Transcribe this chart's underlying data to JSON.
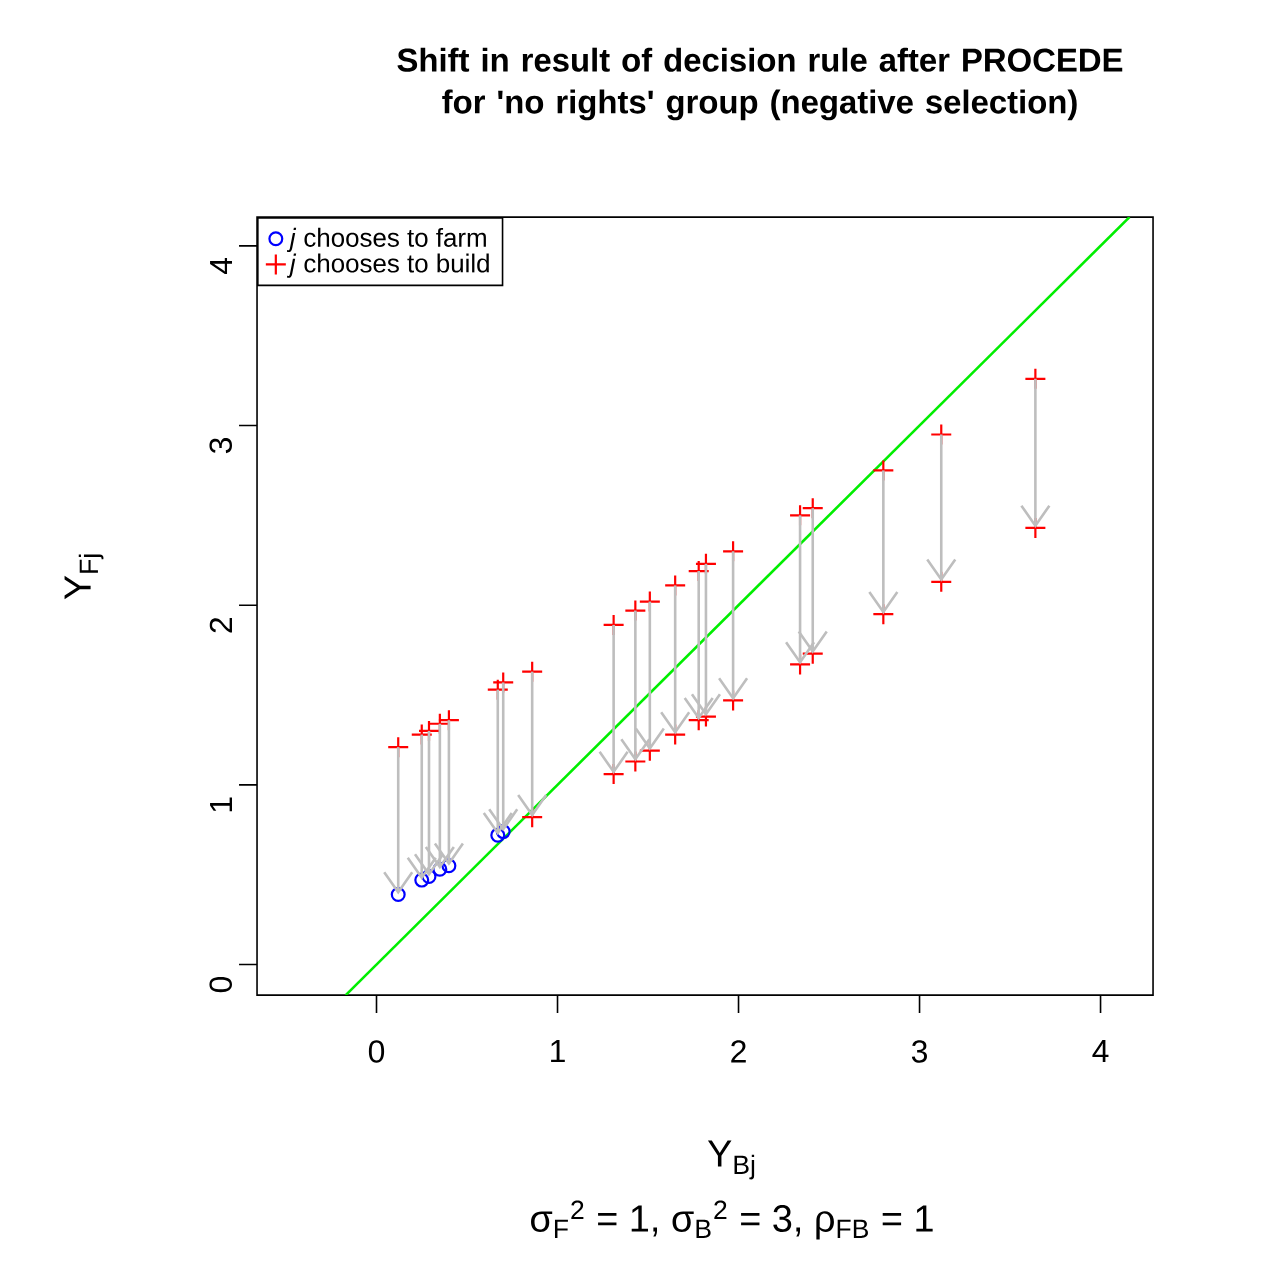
{
  "chart_data": {
    "type": "scatter",
    "title": "Shift in result of decision rule after PROCEDE for 'no rights' group (negative selection)",
    "xlabel": "Y$_{Bj}$",
    "ylabel": "Y$_{Fj}$",
    "annotations": [
      "σ$_{F}$$^{2}$ = 1, σ$_{B}$$^{2}$ = 3, ρ$_{FB}$ = 1"
    ],
    "xlim": [
      -0.66,
      4.29
    ],
    "ylim": [
      -0.17,
      4.16
    ],
    "xticks": [
      0,
      1,
      2,
      3,
      4
    ],
    "yticks": [
      0,
      1,
      2,
      3,
      4
    ],
    "legend": "top left",
    "series": [
      {
        "name": "*j* chooses to farm",
        "color": "#0000ff",
        "marker": "circle",
        "x": [
          0.12,
          0.25,
          0.29,
          0.35,
          0.4,
          0.67,
          0.7
        ],
        "values": [
          0.39,
          0.47,
          0.49,
          0.53,
          0.55,
          0.72,
          0.74
        ]
      },
      {
        "name": "*j* chooses to build",
        "color": "#ff0000",
        "marker": "cross",
        "x": [
          0.12,
          0.25,
          0.29,
          0.35,
          0.4,
          0.67,
          0.7,
          0.86,
          0.86,
          1.31,
          1.31,
          1.43,
          1.43,
          1.51,
          1.51,
          1.65,
          1.65,
          1.78,
          1.78,
          1.82,
          1.82,
          1.97,
          1.97,
          2.34,
          2.34,
          2.41,
          2.41,
          2.8,
          2.8,
          3.12,
          3.12,
          3.64,
          3.64
        ],
        "values": [
          1.21,
          1.28,
          1.3,
          1.34,
          1.36,
          1.53,
          1.57,
          1.63,
          0.82,
          1.89,
          1.06,
          1.97,
          1.13,
          2.02,
          1.19,
          2.11,
          1.28,
          2.19,
          1.36,
          2.23,
          1.38,
          2.3,
          1.47,
          2.5,
          1.67,
          2.54,
          1.73,
          2.75,
          1.95,
          2.95,
          2.13,
          3.26,
          2.43
        ]
      },
      {
        "type": "line",
        "color": "#00ee00",
        "marker": "none",
        "x": [
          -0.17,
          4.16
        ],
        "values": [
          -0.17,
          4.16
        ]
      }
    ]
  }
}
